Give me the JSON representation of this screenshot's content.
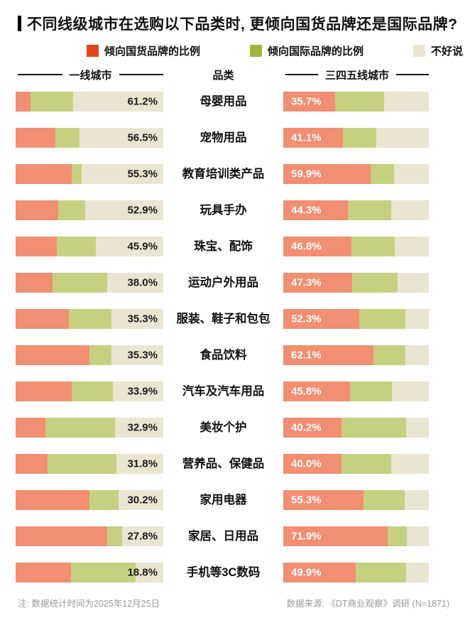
{
  "title": "不同线级城市在选购以下品类时, 更倾向国货品牌还是国际品牌?",
  "legend": {
    "domestic": "倾向国货品牌的比例",
    "international": "倾向国际品牌的比例",
    "unsure": "不好说"
  },
  "column_headers": {
    "left": "一线城市",
    "center": "品类",
    "right": "三四五线城市"
  },
  "footer": {
    "note": "注: 数据统计时间为2025年12月25日",
    "source": "数据来源: 《DT商业观察》调研 (N=1871)"
  },
  "colors": {
    "legend_domestic": "#E2471B",
    "legend_international": "#9FB53A",
    "bar_domestic": "#F28E72",
    "bar_international": "#C5D180",
    "unsure": "#EAE5D1",
    "label_dark": "#1B1B1B",
    "label_light": "#FFFFFF"
  },
  "chart_data": {
    "type": "bar",
    "orientation": "horizontal-stacked",
    "unit": "%",
    "segment_order": [
      "倾向国货品牌的比例",
      "倾向国际品牌的比例",
      "不好说"
    ],
    "groups": [
      "一线城市",
      "三四五线城市"
    ],
    "rows": [
      {
        "category": "母婴用品",
        "tier1": {
          "label": "61.2%",
          "segments": [
            10.0,
            28.8,
            61.2
          ]
        },
        "tier345": {
          "label": "35.7%",
          "segments": [
            35.7,
            33.8,
            30.5
          ]
        }
      },
      {
        "category": "宠物用品",
        "tier1": {
          "label": "56.5%",
          "segments": [
            27.0,
            16.5,
            56.5
          ]
        },
        "tier345": {
          "label": "41.1%",
          "segments": [
            41.1,
            23.0,
            35.9
          ]
        }
      },
      {
        "category": "教育培训类产品",
        "tier1": {
          "label": "55.3%",
          "segments": [
            38.0,
            6.7,
            55.3
          ]
        },
        "tier345": {
          "label": "59.9%",
          "segments": [
            59.9,
            16.1,
            24.0
          ]
        }
      },
      {
        "category": "玩具手办",
        "tier1": {
          "label": "52.9%",
          "segments": [
            29.0,
            18.1,
            52.9
          ]
        },
        "tier345": {
          "label": "44.3%",
          "segments": [
            44.3,
            30.0,
            25.7
          ]
        }
      },
      {
        "category": "珠宝、配饰",
        "tier1": {
          "label": "45.9%",
          "segments": [
            28.0,
            26.1,
            45.9
          ]
        },
        "tier345": {
          "label": "46.8%",
          "segments": [
            46.8,
            29.6,
            23.6
          ]
        }
      },
      {
        "category": "运动户外用品",
        "tier1": {
          "label": "38.0%",
          "segments": [
            25.0,
            37.0,
            38.0
          ]
        },
        "tier345": {
          "label": "47.3%",
          "segments": [
            47.3,
            31.4,
            21.3
          ]
        }
      },
      {
        "category": "服装、鞋子和包包",
        "tier1": {
          "label": "35.3%",
          "segments": [
            36.0,
            28.7,
            35.3
          ]
        },
        "tier345": {
          "label": "52.3%",
          "segments": [
            52.3,
            31.5,
            16.2
          ]
        }
      },
      {
        "category": "食品饮料",
        "tier1": {
          "label": "35.3%",
          "segments": [
            50.0,
            14.7,
            35.3
          ]
        },
        "tier345": {
          "label": "62.1%",
          "segments": [
            62.1,
            21.7,
            16.2
          ]
        }
      },
      {
        "category": "汽车及汽车用品",
        "tier1": {
          "label": "33.9%",
          "segments": [
            38.0,
            28.1,
            33.9
          ]
        },
        "tier345": {
          "label": "45.8%",
          "segments": [
            45.8,
            29.0,
            25.2
          ]
        }
      },
      {
        "category": "美妆个护",
        "tier1": {
          "label": "32.9%",
          "segments": [
            20.0,
            47.1,
            32.9
          ]
        },
        "tier345": {
          "label": "40.2%",
          "segments": [
            40.2,
            44.0,
            15.8
          ]
        }
      },
      {
        "category": "营养品、保健品",
        "tier1": {
          "label": "31.8%",
          "segments": [
            21.5,
            46.7,
            31.8
          ]
        },
        "tier345": {
          "label": "40.0%",
          "segments": [
            40.0,
            34.1,
            25.9
          ]
        }
      },
      {
        "category": "家用电器",
        "tier1": {
          "label": "30.2%",
          "segments": [
            50.0,
            19.8,
            30.2
          ]
        },
        "tier345": {
          "label": "55.3%",
          "segments": [
            55.3,
            28.2,
            16.5
          ]
        }
      },
      {
        "category": "家居、日用品",
        "tier1": {
          "label": "27.8%",
          "segments": [
            62.0,
            10.2,
            27.8
          ]
        },
        "tier345": {
          "label": "71.9%",
          "segments": [
            71.9,
            12.8,
            15.3
          ]
        }
      },
      {
        "category": "手机等3C数码",
        "tier1": {
          "label": "18.8%",
          "segments": [
            37.5,
            43.7,
            18.8
          ]
        },
        "tier345": {
          "label": "49.9%",
          "segments": [
            49.9,
            34.5,
            15.6
          ]
        }
      }
    ]
  }
}
